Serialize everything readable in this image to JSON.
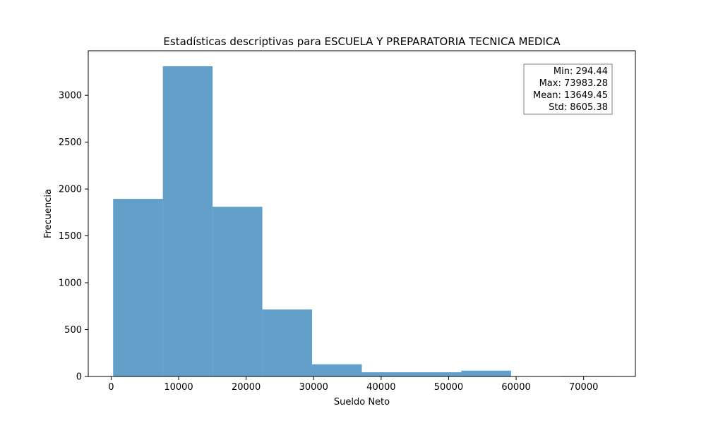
{
  "chart_data": {
    "type": "bar",
    "title": "Estadísticas descriptivas para ESCUELA Y PREPARATORIA TECNICA MEDICA",
    "xlabel": "Sueldo Neto",
    "ylabel": "Frecuencia",
    "bins": [
      {
        "x0": 294.44,
        "x1": 7663.32,
        "count": 1895
      },
      {
        "x0": 7663.32,
        "x1": 15032.21,
        "count": 3310
      },
      {
        "x0": 15032.21,
        "x1": 22401.09,
        "count": 1810
      },
      {
        "x0": 22401.09,
        "x1": 29769.98,
        "count": 715
      },
      {
        "x0": 29769.98,
        "x1": 37138.86,
        "count": 130
      },
      {
        "x0": 37138.86,
        "x1": 44507.75,
        "count": 45
      },
      {
        "x0": 44507.75,
        "x1": 51876.63,
        "count": 45
      },
      {
        "x0": 51876.63,
        "x1": 59245.51,
        "count": 62
      },
      {
        "x0": 59245.51,
        "x1": 66614.4,
        "count": 0
      },
      {
        "x0": 66614.4,
        "x1": 73983.28,
        "count": 5
      }
    ],
    "xlim": [
      -3390,
      77668
    ],
    "ylim": [
      0,
      3475
    ],
    "xticks": [
      0,
      10000,
      20000,
      30000,
      40000,
      50000,
      60000,
      70000
    ],
    "yticks": [
      0,
      500,
      1000,
      1500,
      2000,
      2500,
      3000
    ],
    "bar_color": "#1f77b4",
    "bar_opacity": 0.7,
    "grid": false,
    "stats_box": {
      "placement": "top-right",
      "lines": [
        "Min: 294.44",
        "Max: 73983.28",
        "Mean: 13649.45",
        "Std: 8605.38"
      ]
    }
  }
}
